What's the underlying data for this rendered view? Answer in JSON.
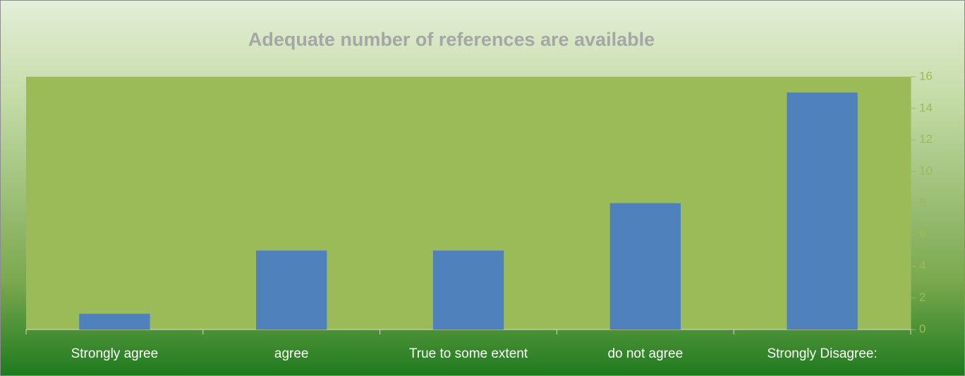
{
  "chart_data": {
    "type": "bar",
    "title": "Adequate number of references are available",
    "categories": [
      "Strongly agree",
      "agree",
      "True to some extent",
      "do not agree",
      "Strongly Disagree:"
    ],
    "values": [
      1,
      5,
      5,
      8,
      15
    ],
    "color": "#4f81bd",
    "ylim": [
      0,
      16
    ],
    "yticks": [
      0,
      2,
      4,
      6,
      8,
      10,
      12,
      14,
      16
    ],
    "y_axis_side": "right",
    "grid": false
  }
}
